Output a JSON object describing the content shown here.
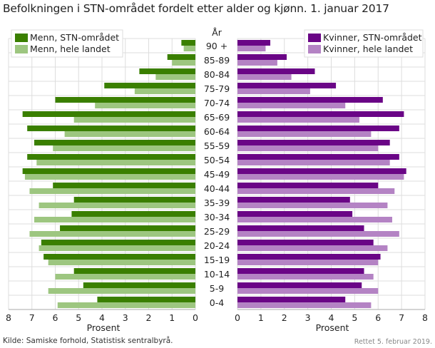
{
  "chart_data": {
    "type": "bar",
    "orientation": "horizontal-pyramid",
    "title": "Befolkningen i STN-området fordelt etter alder og kjønn. 1. januar 2017",
    "category_label": "År",
    "xlabel": "Prosent",
    "xlim": [
      0,
      8
    ],
    "ticks": [
      0,
      1,
      2,
      3,
      4,
      5,
      6,
      7,
      8
    ],
    "grid": true,
    "categories": [
      "90 +",
      "85-89",
      "80-84",
      "75-79",
      "70-74",
      "65-69",
      "60-64",
      "55-59",
      "50-54",
      "45-49",
      "40-44",
      "35-39",
      "30-34",
      "25-29",
      "20-24",
      "15-19",
      "10-14",
      "5-9",
      "0-4"
    ],
    "series": [
      {
        "name": "Menn, STN-området",
        "side": "left",
        "color": "#3a7f00",
        "values": [
          0.6,
          1.2,
          2.4,
          3.9,
          6.0,
          7.4,
          7.2,
          6.9,
          7.2,
          7.4,
          6.1,
          5.2,
          5.3,
          5.8,
          6.6,
          6.5,
          5.2,
          4.8,
          4.2
        ]
      },
      {
        "name": "Menn, hele landet",
        "side": "left",
        "color": "#9dc680",
        "values": [
          0.5,
          1.0,
          1.7,
          2.6,
          4.3,
          5.2,
          5.6,
          6.1,
          6.8,
          7.3,
          7.1,
          6.7,
          6.9,
          7.1,
          6.7,
          6.3,
          6.0,
          6.3,
          5.9
        ]
      },
      {
        "name": "Kvinner, STN-området",
        "side": "right",
        "color": "#6a0586",
        "values": [
          1.4,
          2.1,
          3.3,
          4.2,
          6.2,
          7.1,
          6.9,
          6.5,
          6.9,
          7.2,
          6.0,
          4.8,
          4.9,
          5.4,
          5.8,
          6.1,
          5.4,
          5.3,
          4.6
        ]
      },
      {
        "name": "Kvinner, hele landet",
        "side": "right",
        "color": "#b483c4",
        "values": [
          1.2,
          1.7,
          2.3,
          3.1,
          4.6,
          5.2,
          5.7,
          6.0,
          6.5,
          7.1,
          6.7,
          6.4,
          6.6,
          6.9,
          6.4,
          6.0,
          5.8,
          6.0,
          5.7
        ]
      }
    ],
    "legend": {
      "left": "top-left",
      "right": "top-right"
    }
  },
  "footer": {
    "source": "Kilde: Samiske forhold, Statistisk sentralbyrå.",
    "updated": "Rettet 5. februar 2019."
  }
}
